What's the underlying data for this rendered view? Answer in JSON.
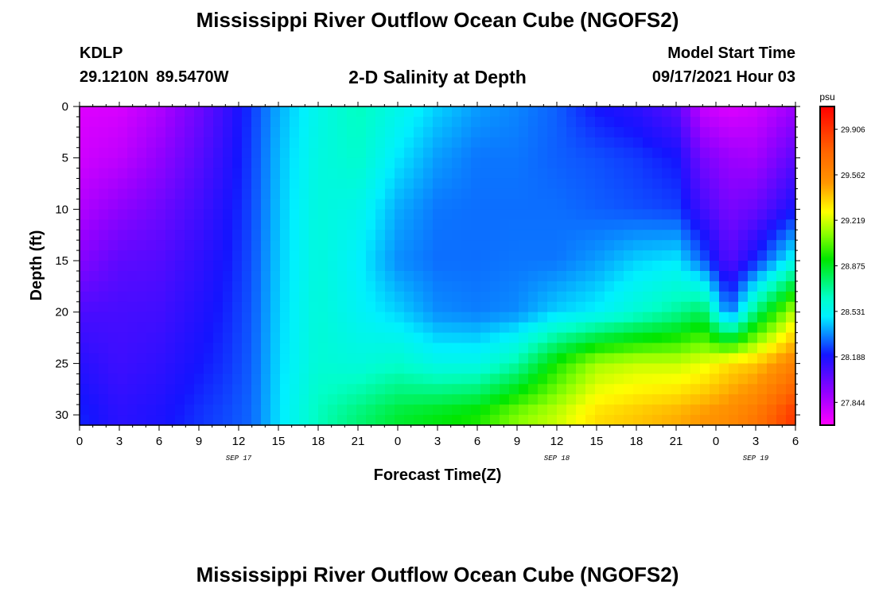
{
  "header": {
    "title": "Mississippi River Outflow Ocean Cube (NGOFS2)",
    "station_id": "KDLP",
    "station_coords": "29.1210N  89.5470W",
    "plot_title": "2-D Salinity at Depth",
    "model_start_label": "Model Start Time",
    "model_start_value": "09/17/2021 Hour 03"
  },
  "footer": {
    "title": "Mississippi River Outflow Ocean Cube (NGOFS2)"
  },
  "colors": {
    "low": "#ff00ff",
    "high": "#ff0000"
  },
  "chart_data": {
    "type": "heatmap",
    "variable": "2-D Salinity at Depth",
    "xlabel": "Forecast Time(Z)",
    "ylabel": "Depth (ft)",
    "x": [
      0,
      3,
      6,
      9,
      12,
      15,
      18,
      21,
      24,
      27,
      30,
      33,
      36,
      39,
      42,
      45,
      48,
      51,
      54
    ],
    "xlim": [
      0,
      54
    ],
    "x_tick_labels": [
      "0",
      "3",
      "6",
      "9",
      "12",
      "15",
      "18",
      "21",
      "0",
      "3",
      "6",
      "9",
      "12",
      "15",
      "18",
      "21",
      "0",
      "3",
      "6"
    ],
    "date_labels": [
      {
        "hour": 12,
        "label": "SEP 17"
      },
      {
        "hour": 36,
        "label": "SEP 18"
      },
      {
        "hour": 51,
        "label": "SEP 19"
      }
    ],
    "y": [
      0,
      5,
      10,
      15,
      20,
      25,
      30
    ],
    "ylim": [
      0,
      31
    ],
    "y_reversed": true,
    "colorbar": {
      "unit": "psu",
      "min": 27.672,
      "max": 30.078,
      "tick_values": [
        27.844,
        28.188,
        28.531,
        28.875,
        29.219,
        29.562,
        29.906
      ],
      "tick_labels": [
        "27.844",
        "28.188",
        "28.531",
        "28.875",
        "29.219",
        "29.562",
        "29.906"
      ]
    },
    "z_columns": [
      {
        "x": 0,
        "values": [
          27.75,
          27.78,
          27.85,
          27.95,
          28.08,
          28.16,
          28.22
        ]
      },
      {
        "x": 3,
        "values": [
          27.76,
          27.82,
          27.93,
          28.04,
          28.09,
          28.11,
          28.15
        ]
      },
      {
        "x": 6,
        "values": [
          27.85,
          27.92,
          28.0,
          28.06,
          28.1,
          28.14,
          28.18
        ]
      },
      {
        "x": 9,
        "values": [
          28.0,
          28.05,
          28.1,
          28.14,
          28.17,
          28.2,
          28.24
        ]
      },
      {
        "x": 11,
        "values": [
          28.12,
          28.15,
          28.18,
          28.2,
          28.22,
          28.24,
          28.27
        ]
      },
      {
        "x": 13,
        "values": [
          28.25,
          28.26,
          28.27,
          28.28,
          28.29,
          28.3,
          28.31
        ]
      },
      {
        "x": 15,
        "values": [
          28.4,
          28.42,
          28.43,
          28.44,
          28.45,
          28.46,
          28.47
        ]
      },
      {
        "x": 18,
        "values": [
          28.55,
          28.57,
          28.58,
          28.58,
          28.59,
          28.6,
          28.65
        ]
      },
      {
        "x": 21,
        "values": [
          28.65,
          28.62,
          28.55,
          28.5,
          28.52,
          28.58,
          28.75
        ]
      },
      {
        "x": 24,
        "values": [
          28.55,
          28.48,
          28.4,
          28.36,
          28.45,
          28.62,
          28.85
        ]
      },
      {
        "x": 27,
        "values": [
          28.45,
          28.38,
          28.33,
          28.32,
          28.36,
          28.55,
          28.9
        ]
      },
      {
        "x": 30,
        "values": [
          28.38,
          28.33,
          28.32,
          28.32,
          28.34,
          28.55,
          28.95
        ]
      },
      {
        "x": 33,
        "values": [
          28.35,
          28.33,
          28.32,
          28.33,
          28.36,
          28.68,
          29.1
        ]
      },
      {
        "x": 36,
        "values": [
          28.3,
          28.3,
          28.32,
          28.33,
          28.45,
          28.95,
          29.2
        ]
      },
      {
        "x": 39,
        "values": [
          28.2,
          28.28,
          28.3,
          28.38,
          28.5,
          29.15,
          29.35
        ]
      },
      {
        "x": 42,
        "values": [
          28.15,
          28.25,
          28.28,
          28.45,
          28.6,
          29.2,
          29.4
        ]
      },
      {
        "x": 45,
        "values": [
          28.05,
          28.2,
          28.26,
          28.48,
          28.7,
          29.2,
          29.45
        ]
      },
      {
        "x": 47,
        "values": [
          27.8,
          27.98,
          28.1,
          28.3,
          28.8,
          29.25,
          29.5
        ]
      },
      {
        "x": 49,
        "values": [
          27.75,
          27.9,
          27.98,
          28.05,
          28.3,
          29.35,
          29.55
        ]
      },
      {
        "x": 51,
        "values": [
          27.78,
          27.88,
          28.02,
          28.22,
          28.75,
          29.4,
          29.65
        ]
      },
      {
        "x": 54,
        "values": [
          27.9,
          28.05,
          28.2,
          28.55,
          29.2,
          29.6,
          29.9
        ]
      }
    ]
  }
}
